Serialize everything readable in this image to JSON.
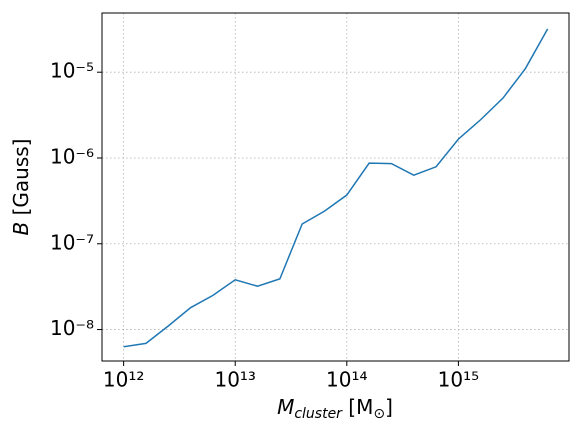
{
  "chart_data": {
    "type": "line",
    "xlabel_parts": [
      "M",
      "cluster",
      " [M",
      "⊙",
      "]"
    ],
    "ylabel_parts": [
      "B",
      " [Gauss]"
    ],
    "x": [
      1000000000000.0,
      1585000000000.0,
      2512000000000.0,
      3981000000000.0,
      6310000000000.0,
      10000000000000.0,
      15850000000000.0,
      25120000000000.0,
      39810000000000.0,
      63100000000000.0,
      100000000000000.0,
      158500000000000.0,
      251200000000000.0,
      398100000000000.0,
      631000000000000.0,
      1000000000000000.0,
      1585000000000000.0,
      2512000000000000.0,
      3981000000000000.0,
      6310000000000000.0
    ],
    "series": [
      {
        "color": "#1f77b4",
        "values": [
          6.3e-09,
          6.9e-09,
          1.1e-08,
          1.8e-08,
          2.5e-08,
          3.8e-08,
          3.2e-08,
          3.9e-08,
          1.7e-07,
          2.4e-07,
          3.7e-07,
          8.7e-07,
          8.6e-07,
          6.3e-07,
          7.9e-07,
          1.66e-06,
          2.8e-06,
          5e-06,
          1.1e-05,
          3.2e-05
        ]
      }
    ],
    "xscale": "log",
    "yscale": "log",
    "xlim": [
      640000000000.0,
      9800000000000000.0
    ],
    "ylim": [
      4.3e-09,
      4.9e-05
    ],
    "xticks": [
      {
        "value": 1000000000000.0,
        "label": "10¹²"
      },
      {
        "value": 10000000000000.0,
        "label": "10¹³"
      },
      {
        "value": 100000000000000.0,
        "label": "10¹⁴"
      },
      {
        "value": 1000000000000000.0,
        "label": "10¹⁵"
      }
    ],
    "yticks": [
      {
        "value": 1e-08,
        "label": "10⁻⁸"
      },
      {
        "value": 1e-07,
        "label": "10⁻⁷"
      },
      {
        "value": 1e-06,
        "label": "10⁻⁶"
      },
      {
        "value": 1e-05,
        "label": "10⁻⁵"
      }
    ],
    "grid": true
  }
}
